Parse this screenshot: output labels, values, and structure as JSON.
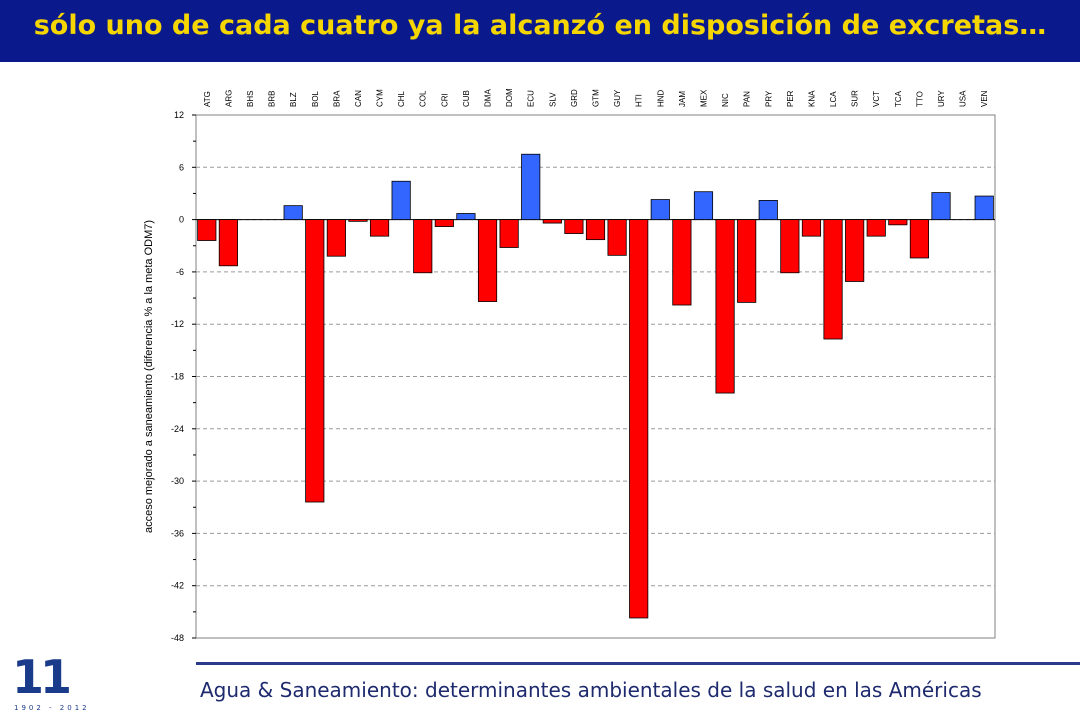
{
  "header": {
    "title": "sólo uno de cada cuatro ya la alcanzó en disposición de excretas…"
  },
  "footer": {
    "text": "Agua & Saneamiento: determinantes ambientales de la salud en las Américas"
  },
  "logo": {
    "digits": "11",
    "years": "1902 - 2012"
  },
  "colors": {
    "negative": "#ff0000",
    "positive": "#3366ff",
    "title_bg": "#0a1a8c",
    "title_fg": "#f5d600"
  },
  "chart_data": {
    "type": "bar",
    "ylabel": "acceso mejorado a saneamiento (diferencia % a la meta ODM7)",
    "ylim": [
      -48,
      12
    ],
    "yticks": [
      12,
      6,
      0,
      -6,
      -12,
      -18,
      -24,
      -30,
      -36,
      -42,
      -48
    ],
    "grid": true,
    "legend": "none",
    "categories": [
      "ATG",
      "ARG",
      "BHS",
      "BRB",
      "BLZ",
      "BOL",
      "BRA",
      "CAN",
      "CYM",
      "CHL",
      "COL",
      "CRI",
      "CUB",
      "DMA",
      "DOM",
      "ECU",
      "SLV",
      "GRD",
      "GTM",
      "GUY",
      "HTI",
      "HND",
      "JAM",
      "MEX",
      "NIC",
      "PAN",
      "PRY",
      "PER",
      "KNA",
      "LCA",
      "SUR",
      "VCT",
      "TCA",
      "TTO",
      "URY",
      "USA",
      "VEN"
    ],
    "values": [
      -2.4,
      -5.3,
      0,
      0,
      1.6,
      -32.4,
      -4.2,
      -0.2,
      -1.9,
      4.4,
      -6.1,
      -0.8,
      0.7,
      -9.4,
      -3.2,
      7.5,
      -0.4,
      -1.6,
      -2.3,
      -4.1,
      -45.7,
      2.3,
      -9.8,
      3.2,
      -19.9,
      -9.5,
      2.2,
      -6.1,
      -1.9,
      -13.7,
      -7.1,
      -1.9,
      -0.6,
      -4.4,
      3.1,
      0,
      2.7
    ]
  }
}
